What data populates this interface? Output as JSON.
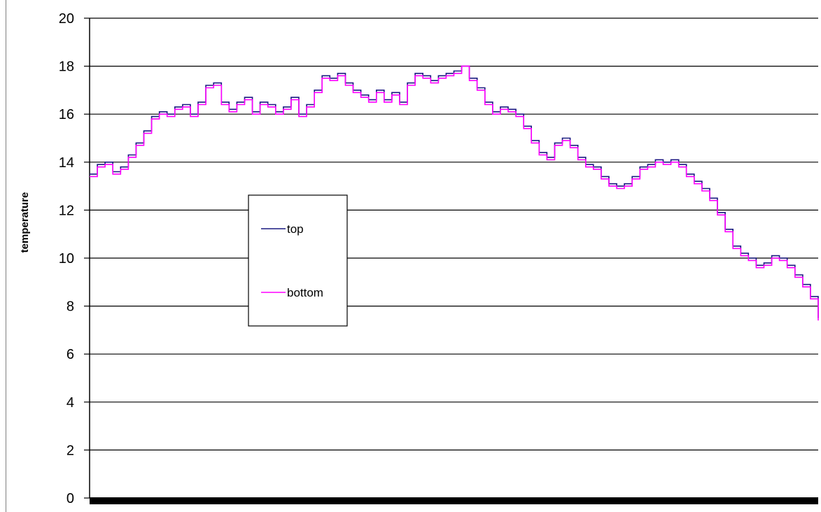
{
  "chart_data": {
    "type": "line",
    "title": "",
    "xlabel": "",
    "ylabel": "temperature",
    "ylim": [
      0,
      20
    ],
    "yticks": [
      0,
      2,
      4,
      6,
      8,
      10,
      12,
      14,
      16,
      18,
      20
    ],
    "grid": "horizontal",
    "legend": "inside-left",
    "series": [
      {
        "name": "top",
        "color": "#1a1a80",
        "values": [
          13.5,
          13.9,
          14.0,
          13.6,
          13.8,
          14.3,
          14.8,
          15.3,
          15.9,
          16.1,
          16.0,
          16.3,
          16.4,
          16.0,
          16.5,
          17.2,
          17.3,
          16.5,
          16.2,
          16.5,
          16.7,
          16.1,
          16.5,
          16.4,
          16.1,
          16.3,
          16.7,
          16.0,
          16.4,
          17.0,
          17.6,
          17.5,
          17.7,
          17.3,
          17.0,
          16.8,
          16.6,
          17.0,
          16.6,
          16.9,
          16.5,
          17.3,
          17.7,
          17.6,
          17.4,
          17.6,
          17.7,
          17.8,
          18.0,
          17.5,
          17.1,
          16.5,
          16.1,
          16.3,
          16.2,
          16.0,
          15.5,
          14.9,
          14.4,
          14.2,
          14.8,
          15.0,
          14.7,
          14.2,
          13.9,
          13.8,
          13.4,
          13.1,
          13.0,
          13.1,
          13.4,
          13.8,
          13.9,
          14.1,
          14.0,
          14.1,
          13.9,
          13.5,
          13.2,
          12.9,
          12.5,
          11.9,
          11.2,
          10.5,
          10.2,
          10.0,
          9.7,
          9.8,
          10.1,
          10.0,
          9.7,
          9.3,
          8.9,
          8.4,
          7.5
        ]
      },
      {
        "name": "bottom",
        "color": "#ff00ff",
        "values": [
          13.4,
          13.8,
          13.9,
          13.5,
          13.7,
          14.2,
          14.7,
          15.2,
          15.8,
          16.0,
          15.9,
          16.2,
          16.3,
          15.9,
          16.4,
          17.1,
          17.2,
          16.4,
          16.1,
          16.4,
          16.6,
          16.0,
          16.4,
          16.3,
          16.0,
          16.2,
          16.6,
          15.9,
          16.3,
          16.9,
          17.5,
          17.4,
          17.6,
          17.2,
          16.9,
          16.7,
          16.5,
          16.9,
          16.5,
          16.8,
          16.4,
          17.2,
          17.6,
          17.5,
          17.3,
          17.5,
          17.6,
          17.7,
          18.0,
          17.4,
          17.0,
          16.4,
          16.0,
          16.2,
          16.1,
          15.9,
          15.4,
          14.8,
          14.3,
          14.1,
          14.7,
          14.9,
          14.6,
          14.1,
          13.8,
          13.7,
          13.3,
          13.0,
          12.9,
          13.0,
          13.3,
          13.7,
          13.8,
          14.0,
          13.9,
          14.0,
          13.8,
          13.4,
          13.1,
          12.8,
          12.4,
          11.8,
          11.1,
          10.4,
          10.1,
          9.9,
          9.6,
          9.7,
          10.0,
          9.9,
          9.6,
          9.2,
          8.8,
          8.3,
          7.4
        ]
      }
    ]
  }
}
